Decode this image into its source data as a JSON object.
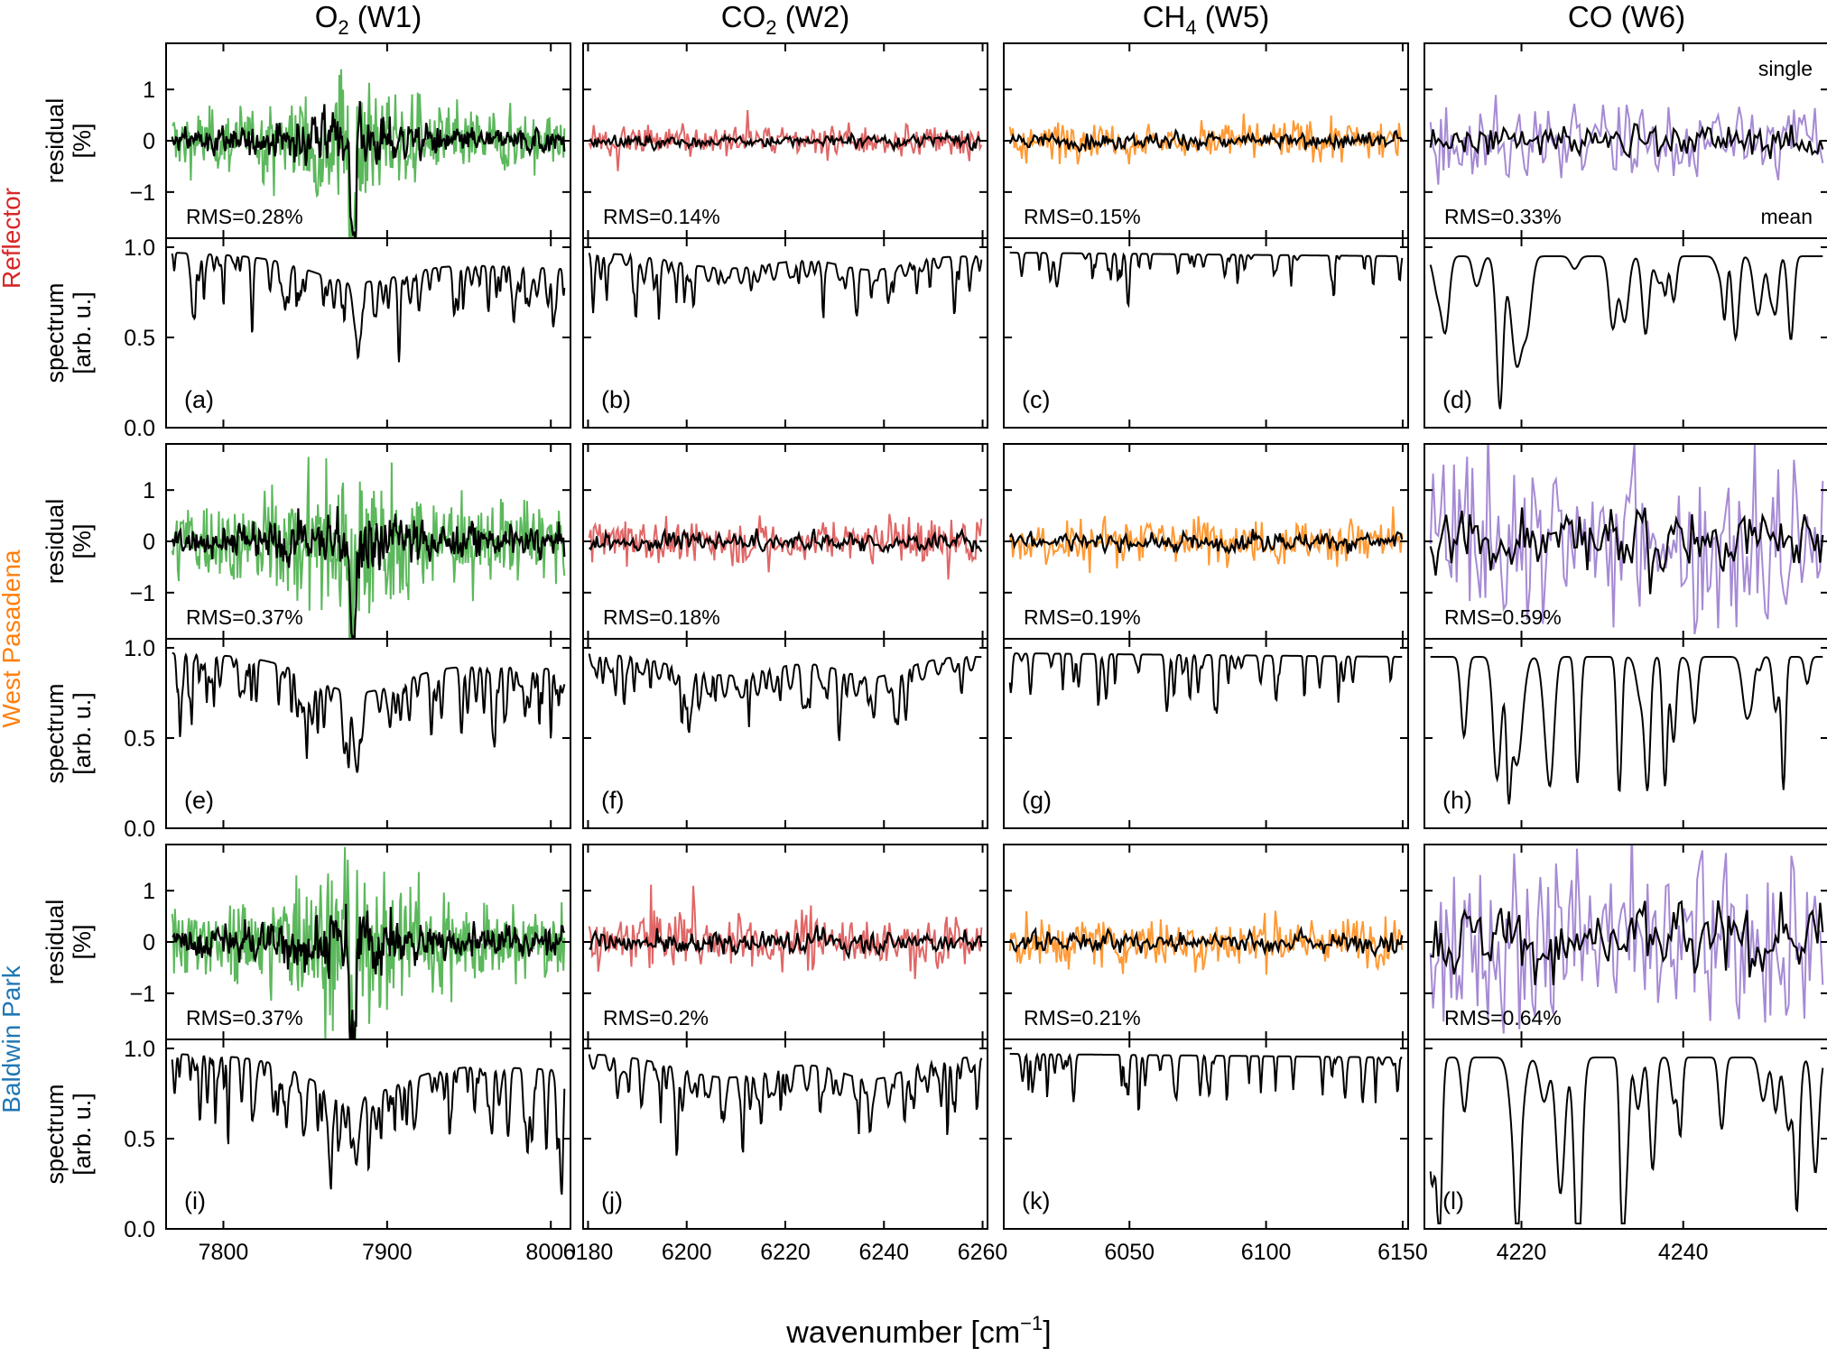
{
  "figure": {
    "xlabel_main": "wavenumber [cm",
    "xlabel_sup": "−1",
    "xlabel_tail": "]"
  },
  "columns": [
    {
      "title_main": "O",
      "title_sub": "2",
      "title_tail": " (W1)",
      "xlim": [
        7765,
        8012
      ],
      "xticks": [
        7800,
        7900,
        8000
      ]
    },
    {
      "title_main": "CO",
      "title_sub": "2",
      "title_tail": " (W2)",
      "xlim": [
        6179,
        6261
      ],
      "xticks": [
        6180,
        6200,
        6220,
        6240,
        6260
      ]
    },
    {
      "title_main": "CH",
      "title_sub": "4",
      "title_tail": " (W5)",
      "xlim": [
        6004,
        6152
      ],
      "xticks": [
        6050,
        6100,
        6150
      ]
    },
    {
      "title_main": "CO",
      "title_sub": "",
      "title_tail": " (W6)",
      "xlim": [
        4208,
        4258
      ],
      "xticks": [
        4220,
        4240
      ]
    }
  ],
  "rows": [
    {
      "label": "Reflector",
      "color": "#d62728"
    },
    {
      "label": "West Pasadena",
      "color": "#ff7f0e"
    },
    {
      "label": "Baldwin Park",
      "color": "#1f77b4"
    }
  ],
  "axes": {
    "residual": {
      "ylabel_line1": "residual",
      "ylabel_line2": "[%]",
      "ylim": [
        -1.9,
        1.9
      ],
      "yticks": [
        "1",
        "0",
        "−1"
      ],
      "ytick_values": [
        1,
        0,
        -1
      ]
    },
    "spectrum": {
      "ylabel_line1": "spectrum",
      "ylabel_line2": "[arb. u.]",
      "ylim": [
        0.0,
        1.05
      ],
      "yticks": [
        "1.0",
        "0.5",
        "0.0"
      ],
      "ytick_values": [
        1.0,
        0.5,
        0.0
      ]
    }
  },
  "series_colors": {
    "W1": "#5cb85c",
    "W2": "#e06666",
    "W5": "#ff9933",
    "W6": "#a68ad4",
    "mean": "#000000"
  },
  "legend": {
    "single": "single",
    "mean": "mean",
    "single_color": "#a68ad4"
  },
  "chart_data": {
    "type": "line",
    "description_series": [
      "single",
      "mean"
    ],
    "rms": [
      [
        "RMS=0.28%",
        "RMS=0.14%",
        "RMS=0.15%",
        "RMS=0.33%"
      ],
      [
        "RMS=0.37%",
        "RMS=0.18%",
        "RMS=0.19%",
        "RMS=0.59%"
      ],
      [
        "RMS=0.37%",
        "RMS=0.2%",
        "RMS=0.21%",
        "RMS=0.64%"
      ]
    ],
    "panel_labels": [
      [
        "(a)",
        "(b)",
        "(c)",
        "(d)"
      ],
      [
        "(e)",
        "(f)",
        "(g)",
        "(h)"
      ],
      [
        "(i)",
        "(j)",
        "(k)",
        "(l)"
      ]
    ],
    "spectrum_ranges": [
      {
        "continuum": [
          0.97,
          0.88
        ],
        "min_value": 0.42,
        "min_at": 7881
      },
      {
        "continuum": [
          0.97,
          0.95
        ],
        "min_value": 0.7,
        "min_at": 6220
      },
      {
        "continuum": [
          0.97,
          0.95
        ],
        "min_value": 0.72,
        "min_at": 6078
      },
      {
        "continuum": [
          0.95,
          0.95
        ],
        "min_value": 0.24,
        "min_at": 4219
      }
    ]
  }
}
